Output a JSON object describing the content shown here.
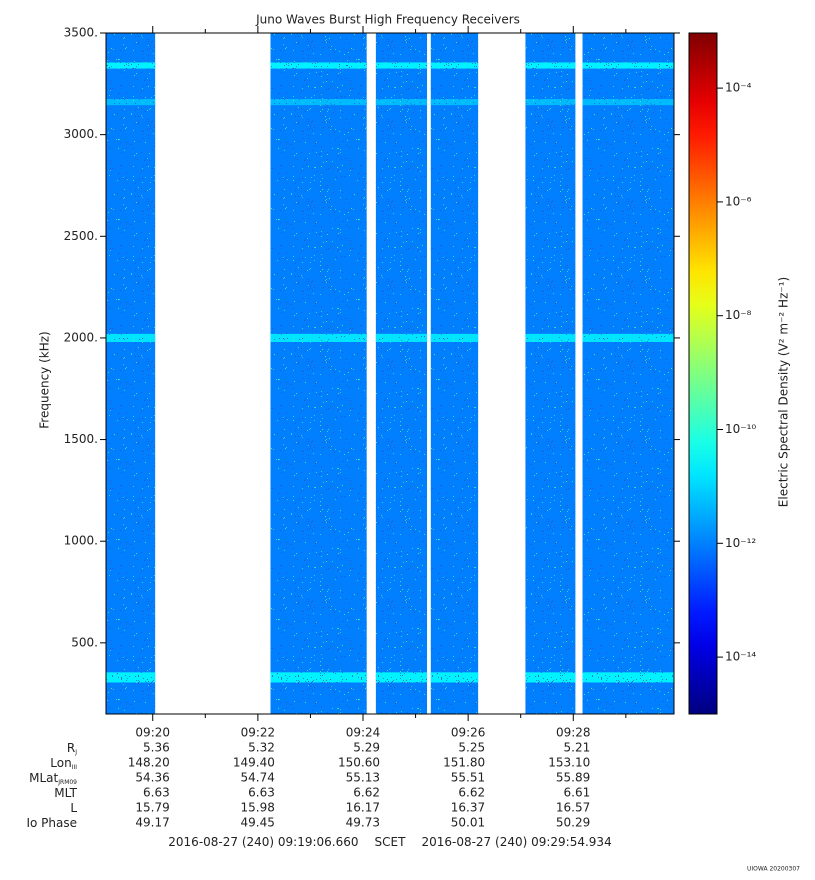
{
  "chart_data": {
    "type": "spectrogram",
    "title": "Juno Waves Burst High Frequency Receivers",
    "ylabel": "Frequency (kHz)",
    "zlabel": "Electric Spectral Density (V² m⁻² Hz⁻¹)",
    "ylim": [
      150,
      3500
    ],
    "yticks": [
      {
        "value": 500,
        "label": "500."
      },
      {
        "value": 1000,
        "label": "1000."
      },
      {
        "value": 1500,
        "label": "1500."
      },
      {
        "value": 2000,
        "label": "2000."
      },
      {
        "value": 2500,
        "label": "2500."
      },
      {
        "value": 3000,
        "label": "3000."
      },
      {
        "value": 3500,
        "label": "3500."
      }
    ],
    "xlim": [
      19.111,
      29.916
    ],
    "xticks": [
      {
        "value": 20,
        "label": "09:20"
      },
      {
        "value": 22,
        "label": "09:22"
      },
      {
        "value": 24,
        "label": "09:24"
      },
      {
        "value": 26,
        "label": "09:26"
      },
      {
        "value": 28,
        "label": "09:28"
      }
    ],
    "xminorticks": [
      21,
      23,
      25,
      27,
      29
    ],
    "zlim": [
      1e-15,
      0.00093
    ],
    "zscale": "log",
    "zticks": [
      {
        "value": 1e-14,
        "label": "10⁻¹⁴"
      },
      {
        "value": 1e-12,
        "label": "10⁻¹²"
      },
      {
        "value": 1e-10,
        "label": "10⁻¹⁰"
      },
      {
        "value": 1e-08,
        "label": "10⁻⁸"
      },
      {
        "value": 1e-06,
        "label": "10⁻⁶"
      },
      {
        "value": 0.0001,
        "label": "10⁻⁴"
      }
    ],
    "segments": [
      [
        19.111,
        20.046
      ],
      [
        22.24,
        24.07
      ],
      [
        24.245,
        25.218
      ],
      [
        25.29,
        26.19
      ],
      [
        27.09,
        28.04
      ],
      [
        28.176,
        29.916
      ]
    ],
    "background_level": 1e-12,
    "lines": [
      {
        "frequency": 330,
        "width": 50,
        "level": 3e-11
      },
      {
        "frequency": 2000,
        "width": 40,
        "level": 2e-11
      },
      {
        "frequency": 3160,
        "width": 30,
        "level": 6e-12
      },
      {
        "frequency": 3340,
        "width": 30,
        "level": 3e-11
      }
    ],
    "ephemeris": [
      {
        "label": "R",
        "sub": "J",
        "values": [
          "5.36",
          "5.32",
          "5.29",
          "5.25",
          "5.21"
        ]
      },
      {
        "label": "Lon",
        "sub": "III",
        "values": [
          "148.20",
          "149.40",
          "150.60",
          "151.80",
          "153.10"
        ]
      },
      {
        "label": "MLat",
        "sub": "JRM09",
        "values": [
          "54.36",
          "54.74",
          "55.13",
          "55.51",
          "55.89"
        ]
      },
      {
        "label": "MLT",
        "values": [
          "6.63",
          "6.63",
          "6.62",
          "6.62",
          "6.61"
        ]
      },
      {
        "label": "L",
        "values": [
          "15.79",
          "15.98",
          "16.17",
          "16.37",
          "16.57"
        ]
      },
      {
        "label": "Io Phase",
        "values": [
          "49.17",
          "49.45",
          "49.73",
          "50.01",
          "50.29"
        ]
      }
    ],
    "start_time": "2016-08-27 (240) 09:19:06.660",
    "time_system": "SCET",
    "end_time": "2016-08-27 (240) 09:29:54.934",
    "credit": "UIOWA 20200307"
  }
}
